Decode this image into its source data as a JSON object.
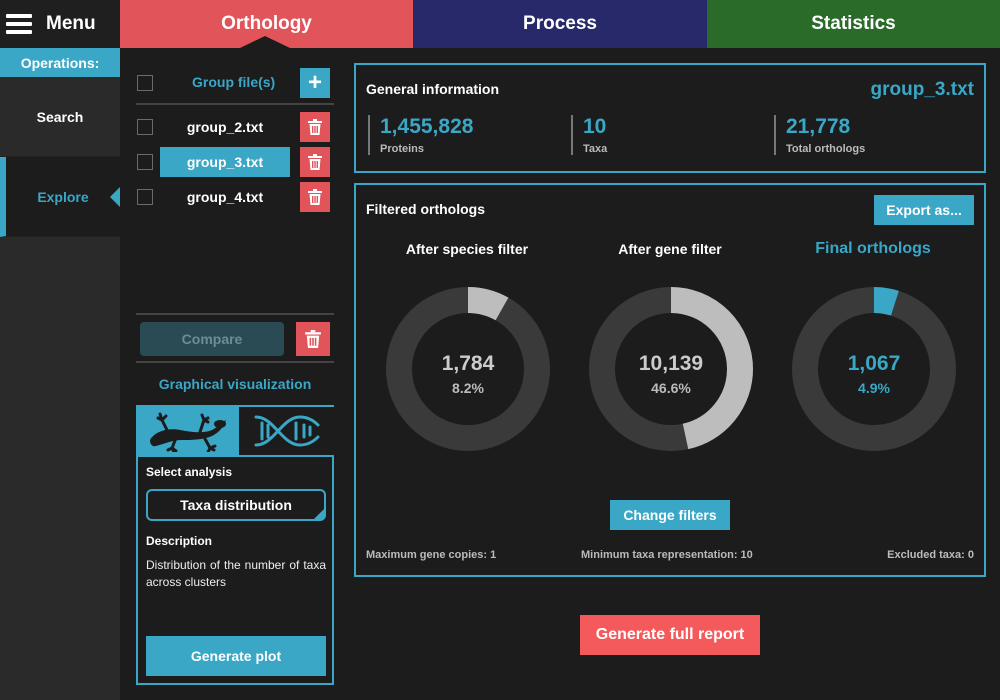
{
  "menu": {
    "label": "Menu"
  },
  "tabs": [
    {
      "label": "Orthology",
      "color": "#e0545a",
      "active": true
    },
    {
      "label": "Process",
      "color": "#28296b"
    },
    {
      "label": "Statistics",
      "color": "#2a6b2a"
    }
  ],
  "sidebar": {
    "operations_label": "Operations:",
    "items": [
      {
        "label": "Search"
      },
      {
        "label": "Explore",
        "active": true
      }
    ]
  },
  "group_files": {
    "title": "Group file(s)",
    "files": [
      {
        "name": "group_2.txt",
        "selected": false
      },
      {
        "name": "group_3.txt",
        "selected": true
      },
      {
        "name": "group_4.txt",
        "selected": false
      }
    ],
    "compare_label": "Compare"
  },
  "graphical": {
    "title": "Graphical visualization",
    "tab_icons": [
      "gecko-icon",
      "dna-icon"
    ],
    "select_label": "Select analysis",
    "analysis_value": "Taxa distribution",
    "description_label": "Description",
    "description": "Distribution of the number of taxa across clusters",
    "generate_label": "Generate plot"
  },
  "general_info": {
    "title": "General information",
    "file": "group_3.txt",
    "stats": [
      {
        "value": "1,455,828",
        "label": "Proteins"
      },
      {
        "value": "10",
        "label": "Taxa"
      },
      {
        "value": "21,778",
        "label": "Total orthologs"
      }
    ]
  },
  "filtered": {
    "title": "Filtered orthologs",
    "export_label": "Export as...",
    "donuts": [
      {
        "title": "After species filter",
        "value": "1,784",
        "percent_label": "8.2%",
        "fraction": 0.082,
        "color": "#bdbdbd"
      },
      {
        "title": "After gene filter",
        "value": "10,139",
        "percent_label": "46.6%",
        "fraction": 0.466,
        "color": "#bdbdbd"
      },
      {
        "title": "Final orthologs",
        "value": "1,067",
        "percent_label": "4.9%",
        "fraction": 0.049,
        "color": "#3aa7c7"
      }
    ],
    "change_filters_label": "Change filters",
    "footer": {
      "max_gene_copies": "Maximum gene copies: 1",
      "min_taxa": "Minimum taxa representation: 10",
      "excluded_taxa": "Excluded taxa: 0"
    }
  },
  "report_label": "Generate full report",
  "colors": {
    "accent": "#3aa7c7",
    "danger": "#e0545a",
    "background": "#1c1c1c",
    "sidebar": "#2a2a2a"
  }
}
